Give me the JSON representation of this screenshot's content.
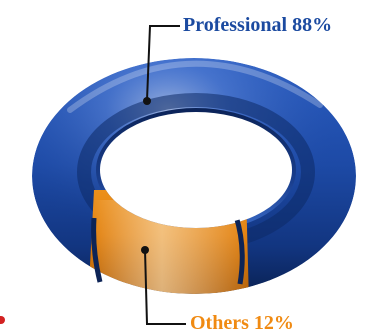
{
  "chart_data": {
    "type": "pie",
    "style": "3d-torus-donut",
    "categories": [
      "Professional",
      "Others"
    ],
    "values": [
      88,
      12
    ],
    "series_colors": {
      "Professional": "#1f4fa6",
      "Others": "#f39a1e"
    },
    "labels": [
      {
        "category": "Professional",
        "text": "Professional 88%",
        "color": "#1b4aa0"
      },
      {
        "category": "Others",
        "text": "Others 12%",
        "color": "#f08a12"
      }
    ],
    "legend": "none"
  }
}
